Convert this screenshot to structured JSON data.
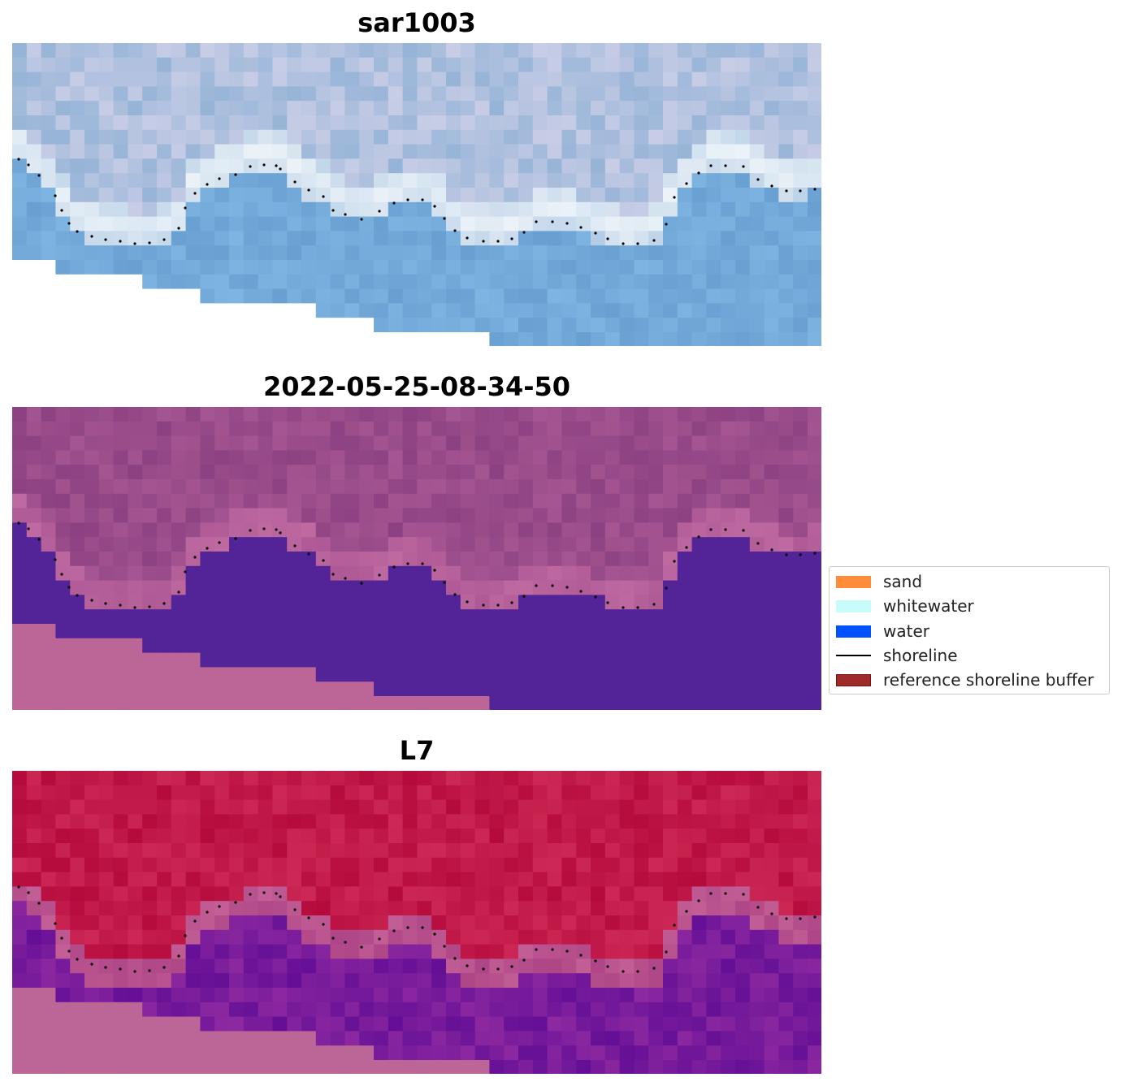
{
  "figure": {
    "panels": [
      {
        "title": "sar1003",
        "style": "sar"
      },
      {
        "title": "2022-05-25-08-34-50",
        "style": "classified"
      },
      {
        "title": "L7",
        "style": "l7"
      }
    ],
    "colors": {
      "sand": "#ff8c3a",
      "whitewater": "#c8fcfa",
      "water": "#0052ff",
      "shoreline": "#000000",
      "reference_buffer": "#9e2a2a",
      "reference_buffer_edge": "#7a1010",
      "mask_pink": "#bb6696",
      "classified_land": "#a0528c",
      "classified_water": "#522498"
    }
  },
  "legend": {
    "items": [
      {
        "label": "sand",
        "kind": "patch",
        "color": "#ff8c3a"
      },
      {
        "label": "whitewater",
        "kind": "patch",
        "color": "#c8fcfa"
      },
      {
        "label": "water",
        "kind": "patch",
        "color": "#0052ff"
      },
      {
        "label": "shoreline",
        "kind": "line",
        "color": "#000000"
      },
      {
        "label": "reference shoreline buffer",
        "kind": "patch",
        "color": "#9e2a2a"
      }
    ]
  }
}
